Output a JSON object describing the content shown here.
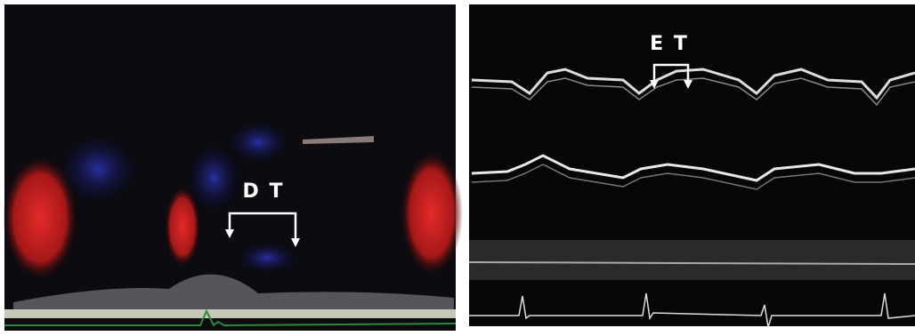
{
  "panels": [
    {
      "label": "D T"
    },
    {
      "label": "E T"
    }
  ]
}
